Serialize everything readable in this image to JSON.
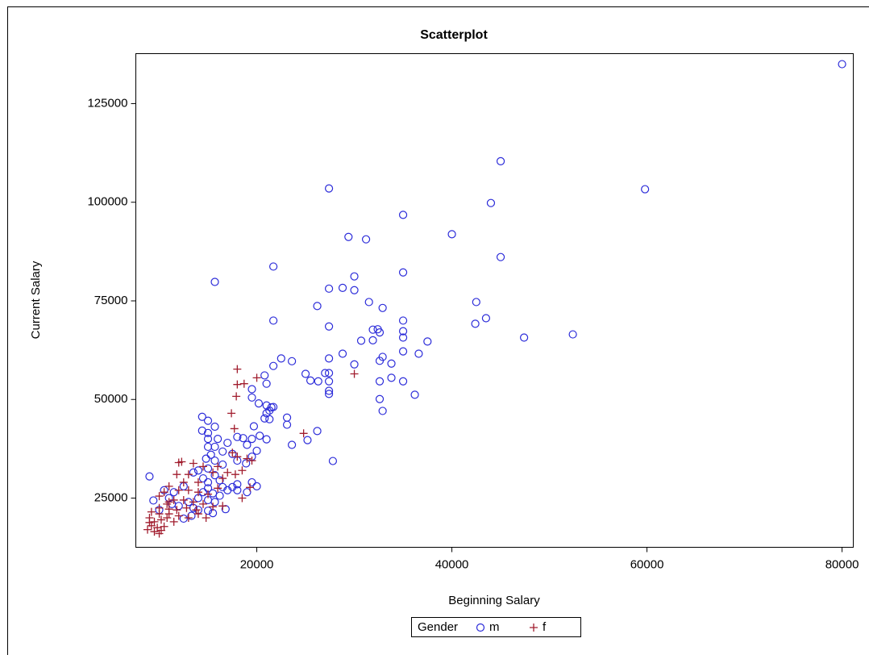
{
  "chart_data": {
    "type": "scatter",
    "title": "Scatterplot",
    "x_label": "Beginning Salary",
    "y_label": "Current Salary",
    "legend_title": "Gender",
    "legend": "bottom",
    "xlim": [
      7600,
      81150
    ],
    "ylim": [
      12530,
      137670
    ],
    "xticks": [
      20000,
      40000,
      60000,
      80000
    ],
    "yticks": [
      25000,
      50000,
      75000,
      100000,
      125000
    ],
    "series": [
      {
        "name": "m",
        "color": "#2b2bd9",
        "marker": "circle",
        "x": [
          80000,
          45000,
          27400,
          59800,
          44000,
          35000,
          40000,
          29400,
          31200,
          21700,
          15700,
          45000,
          35000,
          30000,
          27400,
          28800,
          30000,
          26200,
          42500,
          31500,
          32900,
          43500,
          42400,
          21700,
          27400,
          35000,
          31900,
          32400,
          32600,
          35000,
          35000,
          52400,
          47400,
          37500,
          30700,
          31900,
          36600,
          32900,
          35000,
          28800,
          27400,
          22500,
          23600,
          21700,
          30000,
          33800,
          32600,
          27400,
          25000,
          25500,
          26300,
          27000,
          27400,
          32600,
          33800,
          35000,
          36200,
          27400,
          27400,
          32600,
          32900,
          27800,
          21000,
          20800,
          19500,
          19500,
          20200,
          21000,
          21500,
          21700,
          20800,
          21300,
          21000,
          21300,
          23100,
          23100,
          23600,
          25200,
          26200,
          19700,
          14400,
          15000,
          14400,
          15700,
          15000,
          15000,
          16000,
          17000,
          18000,
          18600,
          19000,
          19500,
          20300,
          21000,
          20000,
          19500,
          18000,
          18900,
          17500,
          16500,
          15700,
          15000,
          15300,
          14800,
          15700,
          16500,
          15000,
          14000,
          13500,
          14500,
          15000,
          15700,
          16200,
          16500,
          17000,
          17500,
          18000,
          18000,
          19000,
          19500,
          20000,
          15000,
          15500,
          14500,
          14000,
          15000,
          15700,
          16200,
          13000,
          13500,
          14000,
          15000,
          15500,
          16800,
          12500,
          13300,
          12000,
          11500,
          10500,
          11000,
          9000,
          9400,
          10000,
          11300,
          12500
        ],
        "values": [
          135000,
          110400,
          103500,
          103300,
          99800,
          96800,
          91900,
          91200,
          90600,
          83700,
          79800,
          86100,
          82200,
          81200,
          78100,
          78300,
          77700,
          73700,
          74700,
          74700,
          73200,
          70600,
          69200,
          70000,
          68500,
          70000,
          67700,
          67800,
          67000,
          67300,
          65700,
          66500,
          65700,
          64700,
          64900,
          65000,
          61600,
          60800,
          62200,
          61600,
          60400,
          60400,
          59700,
          58500,
          58900,
          59100,
          59800,
          54600,
          56500,
          54800,
          54600,
          56700,
          56700,
          54600,
          55500,
          54600,
          51200,
          52200,
          51400,
          50100,
          47100,
          34400,
          54000,
          56100,
          52600,
          50500,
          49000,
          48500,
          48000,
          48100,
          45200,
          45000,
          46500,
          47200,
          45400,
          43600,
          38500,
          39700,
          42000,
          43200,
          45600,
          44600,
          42100,
          43100,
          41500,
          40000,
          40000,
          39000,
          40500,
          40200,
          38500,
          40000,
          40800,
          39900,
          37000,
          35500,
          34500,
          33800,
          36200,
          36800,
          38000,
          38000,
          36000,
          35000,
          34500,
          33500,
          32500,
          32000,
          31500,
          30000,
          29000,
          30800,
          29500,
          27800,
          27000,
          27800,
          28500,
          27000,
          26500,
          29000,
          28000,
          27500,
          26200,
          26500,
          25000,
          24500,
          24000,
          25600,
          24000,
          22500,
          22000,
          21800,
          21200,
          22200,
          19800,
          20500,
          23000,
          26500,
          27000,
          25000,
          30500,
          24400,
          22000,
          23500,
          28000
        ]
      },
      {
        "name": "f",
        "color": "#a11d2e",
        "marker": "plus",
        "x": [
          18000,
          18000,
          18700,
          17900,
          20000,
          30000,
          24800,
          17400,
          17700,
          19300,
          18500,
          18000,
          17500,
          19000,
          19500,
          18500,
          17800,
          16000,
          15500,
          16500,
          14500,
          13500,
          12000,
          12300,
          13000,
          11800,
          14000,
          12500,
          11000,
          10500,
          12000,
          13000,
          14000,
          15000,
          10000,
          11000,
          11500,
          12500,
          13500,
          14500,
          15500,
          16500,
          10000,
          10800,
          11800,
          12800,
          13800,
          9200,
          10000,
          11000,
          12000,
          13000,
          14000,
          14800,
          9000,
          9500,
          10200,
          10800,
          11500,
          9200,
          9800,
          10500,
          8800,
          9500,
          10200,
          9000,
          10000,
          11000,
          16000,
          17000
        ],
        "values": [
          57700,
          53800,
          54000,
          50800,
          55500,
          56500,
          41400,
          46500,
          42600,
          27700,
          25000,
          35500,
          36500,
          35000,
          34500,
          32000,
          31000,
          33000,
          31500,
          30000,
          33000,
          33800,
          34000,
          34200,
          31000,
          31000,
          29000,
          29000,
          28000,
          26500,
          27000,
          27000,
          26500,
          26000,
          25500,
          24000,
          24500,
          24500,
          24000,
          23500,
          22800,
          23000,
          22500,
          23500,
          22000,
          22500,
          22000,
          21500,
          21000,
          21000,
          20500,
          20000,
          21000,
          20000,
          20000,
          19000,
          19500,
          20000,
          19000,
          18000,
          17500,
          17800,
          17000,
          16500,
          16800,
          18800,
          16000,
          22200,
          27500,
          31500
        ]
      }
    ]
  }
}
